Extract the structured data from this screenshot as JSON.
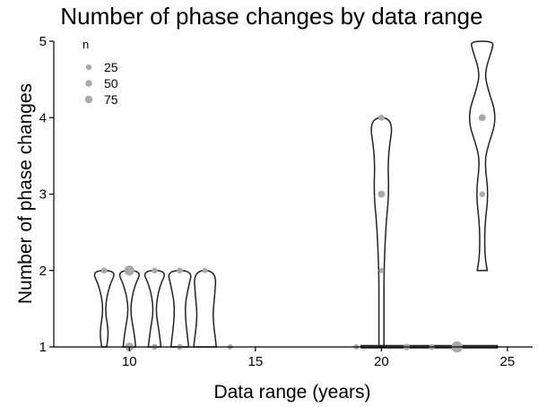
{
  "chart_data": {
    "type": "violin",
    "title": "Number of phase changes by data range",
    "xlabel": "Data range (years)",
    "ylabel": "Number of phase changes",
    "xlim": [
      7,
      26
    ],
    "ylim": [
      1,
      5
    ],
    "x_ticks": [
      10,
      15,
      20,
      25
    ],
    "y_ticks": [
      1,
      2,
      3,
      4,
      5
    ],
    "grid": false,
    "legend": {
      "title": "n",
      "placement": "top-left",
      "entries": [
        {
          "label": "25",
          "n": 25
        },
        {
          "label": "50",
          "n": 50
        },
        {
          "label": "75",
          "n": 75
        }
      ]
    },
    "violins": [
      {
        "x": 9,
        "ymin": 1,
        "ymax": 2,
        "shape": [
          [
            1,
            0.1
          ],
          [
            1.2,
            0.18
          ],
          [
            1.5,
            0.02
          ],
          [
            1.8,
            0.2
          ],
          [
            2,
            0.5
          ]
        ]
      },
      {
        "x": 10,
        "ymin": 1,
        "ymax": 2,
        "shape": [
          [
            1,
            0.25
          ],
          [
            1.2,
            0.18
          ],
          [
            1.5,
            0.02
          ],
          [
            1.8,
            0.2
          ],
          [
            2,
            0.5
          ]
        ]
      },
      {
        "x": 11,
        "ymin": 1,
        "ymax": 2,
        "shape": [
          [
            1,
            0.25
          ],
          [
            1.2,
            0.18
          ],
          [
            1.5,
            0.03
          ],
          [
            1.8,
            0.2
          ],
          [
            2,
            0.5
          ]
        ]
      },
      {
        "x": 12,
        "ymin": 1,
        "ymax": 2,
        "shape": [
          [
            1,
            0.35
          ],
          [
            1.5,
            0.18
          ],
          [
            1.8,
            0.35
          ],
          [
            2,
            0.5
          ]
        ]
      },
      {
        "x": 13,
        "ymin": 1,
        "ymax": 2,
        "shape": [
          [
            1,
            0.45
          ],
          [
            1.4,
            0.3
          ],
          [
            1.65,
            0.38
          ],
          [
            2,
            0.45
          ]
        ]
      },
      {
        "x": 20,
        "ymin": 1,
        "ymax": 4,
        "shape": [
          [
            1,
            0.1
          ],
          [
            1.5,
            0.1
          ],
          [
            2,
            0.1
          ],
          [
            2.6,
            0.18
          ],
          [
            3,
            0.3
          ],
          [
            3.5,
            0.25
          ],
          [
            4,
            0.5
          ]
        ]
      },
      {
        "x": 24,
        "ymin": 2,
        "ymax": 5,
        "shape": [
          [
            2,
            0.2
          ],
          [
            2.2,
            0.1
          ],
          [
            2.6,
            0.1
          ],
          [
            3,
            0.25
          ],
          [
            3.4,
            0.1
          ],
          [
            3.6,
            0.2
          ],
          [
            4,
            0.6
          ],
          [
            4.4,
            0.2
          ],
          [
            4.6,
            0.1
          ],
          [
            4.9,
            0.4
          ],
          [
            5,
            0.45
          ]
        ]
      }
    ],
    "flat_violins": [
      {
        "x_start": 19.2,
        "x_end": 24.6,
        "y": 1
      }
    ],
    "points": [
      {
        "x": 9,
        "y": 2,
        "n": 8
      },
      {
        "x": 10,
        "y": 2,
        "n": 45
      },
      {
        "x": 10,
        "y": 1,
        "n": 30
      },
      {
        "x": 11,
        "y": 2,
        "n": 8
      },
      {
        "x": 11,
        "y": 1,
        "n": 8
      },
      {
        "x": 12,
        "y": 2,
        "n": 8
      },
      {
        "x": 12,
        "y": 1,
        "n": 8
      },
      {
        "x": 13,
        "y": 2,
        "n": 5
      },
      {
        "x": 14,
        "y": 1,
        "n": 5
      },
      {
        "x": 19,
        "y": 1,
        "n": 5
      },
      {
        "x": 20,
        "y": 4,
        "n": 8
      },
      {
        "x": 20,
        "y": 3,
        "n": 15
      },
      {
        "x": 20,
        "y": 2,
        "n": 5
      },
      {
        "x": 21,
        "y": 1,
        "n": 12
      },
      {
        "x": 22,
        "y": 1,
        "n": 8
      },
      {
        "x": 23,
        "y": 1,
        "n": 60
      },
      {
        "x": 24,
        "y": 4,
        "n": 15
      },
      {
        "x": 24,
        "y": 3,
        "n": 8
      }
    ]
  }
}
